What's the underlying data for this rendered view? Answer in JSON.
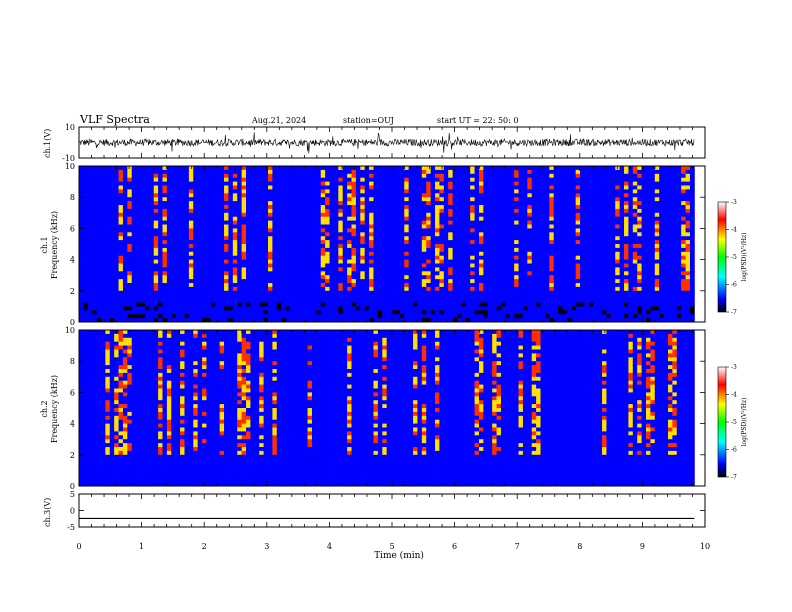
{
  "header": {
    "title": "VLF Spectra",
    "date": "Aug.21, 2024",
    "station": "station=OUJ",
    "start": "start  UT =   22: 50: 0"
  },
  "colors": {
    "colormap": [
      "#000000",
      "#0000ff",
      "#00ffff",
      "#00ff00",
      "#ffff00",
      "#ff0000",
      "#ffffff"
    ],
    "trace": "#000000",
    "axes": "#000000"
  },
  "chart_data": [
    {
      "type": "line",
      "name": "ch1-waveform",
      "ylabel": "ch.1(V)",
      "ylim": [
        -10,
        10
      ],
      "yticks": [
        "10",
        "-10"
      ],
      "xlim": [
        0,
        10
      ],
      "description_of_signal": "noisy waveform centered near 0 V, spikes toward ±10 V"
    },
    {
      "type": "heatmap",
      "name": "ch1-spectrogram",
      "ylabel": "ch.1\nFrequency (kHz)",
      "ylim": [
        0,
        10
      ],
      "yticks": [
        "0",
        "2",
        "4",
        "6",
        "8",
        "10"
      ],
      "xlim": [
        0,
        9.83
      ],
      "colorbar": {
        "label": "log(PSD)(V²/Hz)",
        "ticks": [
          "-3",
          "-4",
          "-5",
          "-6",
          "-7"
        ],
        "range": [
          -7,
          -3
        ]
      }
    },
    {
      "type": "heatmap",
      "name": "ch2-spectrogram",
      "ylabel": "ch.2\nFrequency (kHz)",
      "ylim": [
        0,
        10
      ],
      "yticks": [
        "0",
        "2",
        "4",
        "6",
        "8",
        "10"
      ],
      "xlim": [
        0,
        9.83
      ],
      "colorbar": {
        "label": "log(PSD)(V²/Hz)",
        "ticks": [
          "-3",
          "-4",
          "-5",
          "-6",
          "-7"
        ],
        "range": [
          -7,
          -3
        ]
      }
    },
    {
      "type": "line",
      "name": "ch3-waveform",
      "ylabel": "ch.3(V)",
      "ylim": [
        -5,
        5
      ],
      "yticks": [
        "5",
        "0",
        "-5"
      ],
      "xlim": [
        0,
        10
      ],
      "series": [
        {
          "x": [
            0,
            9.83
          ],
          "y": [
            -2.4,
            -2.4
          ]
        }
      ]
    }
  ],
  "xaxis": {
    "label": "Time (min)",
    "ticks": [
      "0",
      "1",
      "2",
      "3",
      "4",
      "5",
      "6",
      "7",
      "8",
      "9",
      "10"
    ],
    "range": [
      0,
      10
    ]
  }
}
